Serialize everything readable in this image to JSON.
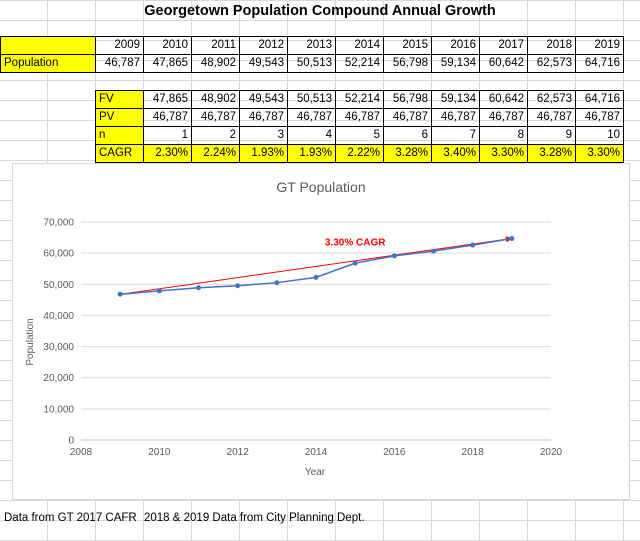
{
  "sheet_title": "Georgetown Population Compound Annual Growth",
  "population_table": {
    "row_label": "Population",
    "years": [
      "2009",
      "2010",
      "2011",
      "2012",
      "2013",
      "2014",
      "2015",
      "2016",
      "2017",
      "2018",
      "2019"
    ],
    "values": [
      "46,787",
      "47,865",
      "48,902",
      "49,543",
      "50,513",
      "52,214",
      "56,798",
      "59,134",
      "60,642",
      "62,573",
      "64,716"
    ]
  },
  "cagr_table": {
    "rows": [
      {
        "label": "FV",
        "values": [
          "47,865",
          "48,902",
          "49,543",
          "50,513",
          "52,214",
          "56,798",
          "59,134",
          "60,642",
          "62,573",
          "64,716"
        ]
      },
      {
        "label": "PV",
        "values": [
          "46,787",
          "46,787",
          "46,787",
          "46,787",
          "46,787",
          "46,787",
          "46,787",
          "46,787",
          "46,787",
          "46,787"
        ]
      },
      {
        "label": "n",
        "values": [
          "1",
          "2",
          "3",
          "4",
          "5",
          "6",
          "7",
          "8",
          "9",
          "10"
        ]
      },
      {
        "label": "CAGR",
        "values": [
          "2.30%",
          "2.24%",
          "1.93%",
          "1.93%",
          "2.22%",
          "3.28%",
          "3.40%",
          "3.30%",
          "3.28%",
          "3.30%"
        ]
      }
    ]
  },
  "chart_data": {
    "type": "scatter",
    "title": "GT Population",
    "xlabel": "Year",
    "ylabel": "Population",
    "xlim": [
      2008,
      2020
    ],
    "ylim": [
      0,
      70000
    ],
    "x_ticks": [
      2008,
      2010,
      2012,
      2014,
      2016,
      2018,
      2020
    ],
    "y_ticks": [
      0,
      10000,
      20000,
      30000,
      40000,
      50000,
      60000,
      70000
    ],
    "y_tick_labels": [
      "0",
      "10,000",
      "20,000",
      "30,000",
      "40,000",
      "50,000",
      "60,000",
      "70,000"
    ],
    "grid": "horizontal",
    "legend": "none",
    "series": [
      {
        "x": [
          2009,
          2010,
          2011,
          2012,
          2013,
          2014,
          2015,
          2016,
          2017,
          2018,
          2019
        ],
        "y": [
          46787,
          47865,
          48902,
          49543,
          50513,
          52214,
          56798,
          59134,
          60642,
          62573,
          64716
        ],
        "color": "#4472c4"
      }
    ],
    "trend_line": {
      "from": [
        2009,
        46787
      ],
      "to": [
        2019,
        64716
      ],
      "color": "#ff0000",
      "arrow": true
    },
    "annotation": {
      "text": "3.30% CAGR",
      "x": 2015.0,
      "y": 62500,
      "color": "#ff0000"
    }
  },
  "footer": {
    "note1": "Data from GT 2017 CAFR",
    "note2": "2018 & 2019 Data from City Planning Dept."
  }
}
